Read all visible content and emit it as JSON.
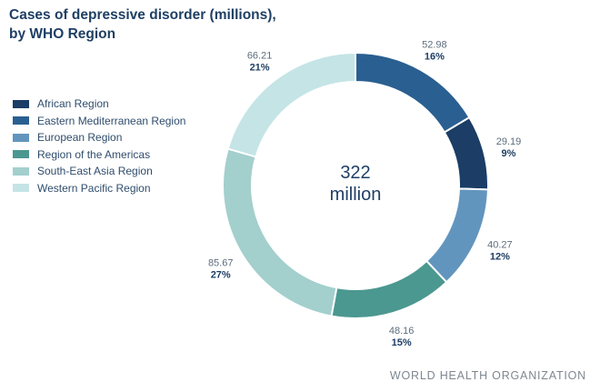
{
  "title": {
    "line1": "Cases of depressive disorder (millions),",
    "line2": "by WHO Region"
  },
  "footer": "WORLD HEALTH ORGANIZATION",
  "center_label": {
    "value": "322",
    "unit": "million"
  },
  "chart_data": {
    "type": "pie",
    "donut": true,
    "title": "Cases of depressive disorder (millions), by WHO Region",
    "categories": [
      "African Region",
      "Eastern Mediterranean Region",
      "European Region",
      "Region of the Americas",
      "South-East Asia Region",
      "Western Pacific Region"
    ],
    "slices": [
      {
        "name": "Eastern Mediterranean Region",
        "value": 52.98,
        "label": "52.98",
        "percent": "16%",
        "color": "#2a5f91"
      },
      {
        "name": "African Region",
        "value": 29.19,
        "label": "29.19",
        "percent": "9%",
        "color": "#1b3d66"
      },
      {
        "name": "European Region",
        "value": 40.27,
        "label": "40.27",
        "percent": "12%",
        "color": "#6295be"
      },
      {
        "name": "Region of the Americas",
        "value": 48.16,
        "label": "48.16",
        "percent": "15%",
        "color": "#4b9890"
      },
      {
        "name": "South-East Asia Region",
        "value": 85.67,
        "label": "85.67",
        "percent": "27%",
        "color": "#a3cfcd"
      },
      {
        "name": "Western Pacific Region",
        "value": 66.21,
        "label": "66.21",
        "percent": "21%",
        "color": "#c5e4e6"
      }
    ],
    "legend": [
      {
        "label": "African Region",
        "color": "#1b3d66"
      },
      {
        "label": "Eastern Mediterranean Region",
        "color": "#2a5f91"
      },
      {
        "label": "European Region",
        "color": "#6295be"
      },
      {
        "label": "Region of the Americas",
        "color": "#4b9890"
      },
      {
        "label": "South-East Asia Region",
        "color": "#a3cfcd"
      },
      {
        "label": "Western Pacific Region",
        "color": "#c5e4e6"
      }
    ],
    "legend_position": "left"
  }
}
